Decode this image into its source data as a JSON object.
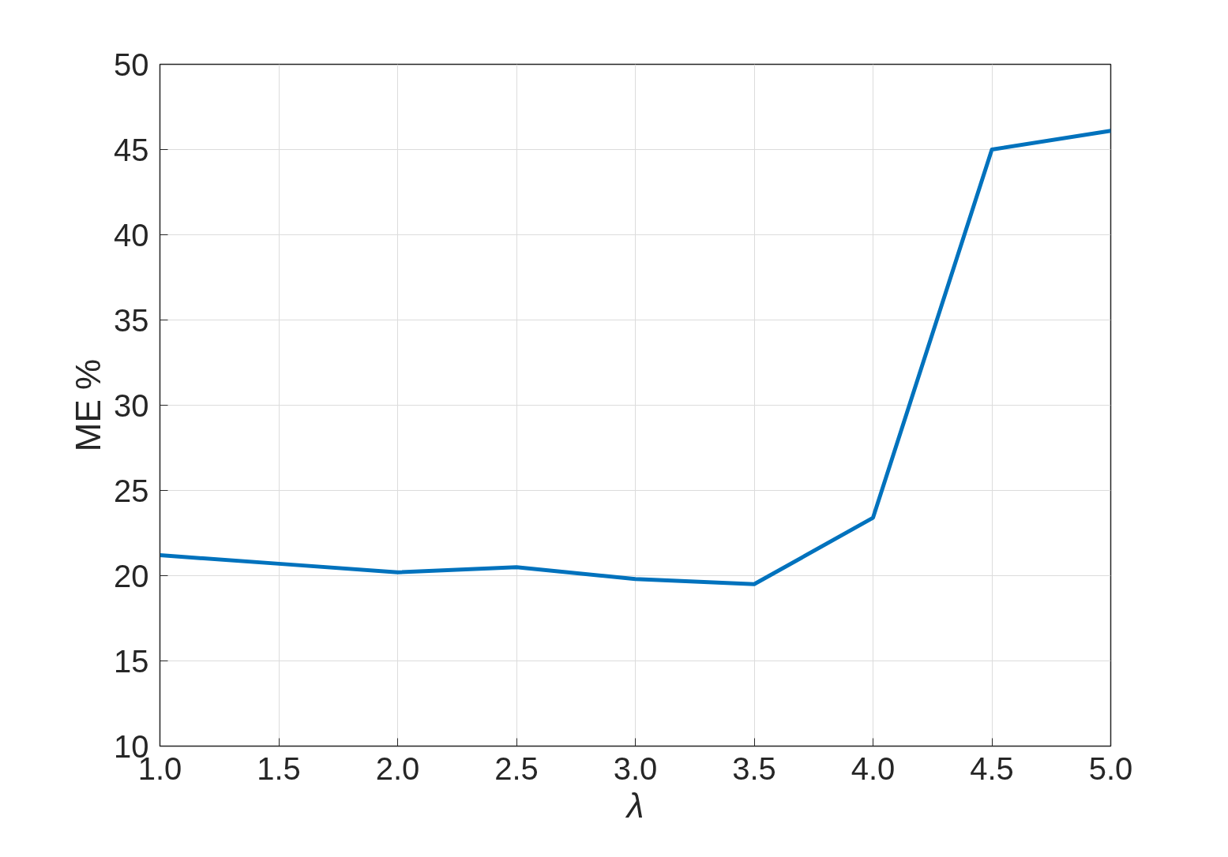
{
  "chart_data": {
    "type": "line",
    "xlabel": "λ",
    "ylabel": "ME %",
    "x": [
      1.0,
      1.5,
      2.0,
      2.5,
      3.0,
      3.5,
      4.0,
      4.5,
      5.0
    ],
    "series": [
      {
        "color": "#0072bd",
        "values": [
          21.2,
          20.7,
          20.2,
          20.5,
          19.8,
          19.5,
          23.4,
          45.0,
          46.1
        ]
      }
    ],
    "xlim": [
      1.0,
      5.0
    ],
    "ylim": [
      10,
      50
    ],
    "xticks": [
      {
        "value": 1.0,
        "label": "1.0"
      },
      {
        "value": 1.5,
        "label": "1.5"
      },
      {
        "value": 2.0,
        "label": "2.0"
      },
      {
        "value": 2.5,
        "label": "2.5"
      },
      {
        "value": 3.0,
        "label": "3.0"
      },
      {
        "value": 3.5,
        "label": "3.5"
      },
      {
        "value": 4.0,
        "label": "4.0"
      },
      {
        "value": 4.5,
        "label": "4.5"
      },
      {
        "value": 5.0,
        "label": "5.0"
      }
    ],
    "yticks": [
      10,
      15,
      20,
      25,
      30,
      35,
      40,
      45,
      50
    ],
    "grid": true,
    "line_style": "solid",
    "marker": "none"
  }
}
